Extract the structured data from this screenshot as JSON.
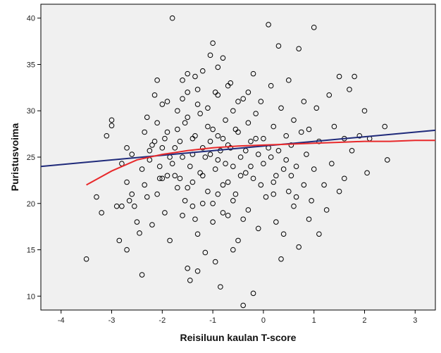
{
  "chart_data": {
    "type": "scatter",
    "title": "",
    "xlabel": "Reisiluun kaulan T-score",
    "ylabel": "Puristusvoima",
    "xlim": [
      -4.4,
      3.4
    ],
    "ylim": [
      8.5,
      41.5
    ],
    "xticks": [
      -4,
      -3,
      -2,
      -1,
      0,
      1,
      2,
      3
    ],
    "yticks": [
      10,
      15,
      20,
      25,
      30,
      35,
      40
    ],
    "grid": false,
    "legend": "none",
    "colors": {
      "plot_background": "#f0f0f0",
      "marker_stroke": "#000000",
      "linear_fit": "#1f2a7a",
      "loess_fit": "#e8292b"
    },
    "fit_lines": [
      {
        "kind": "linear",
        "color": "#1f2a7a",
        "points": [
          [
            -4.4,
            24.0
          ],
          [
            3.4,
            27.9
          ]
        ]
      },
      {
        "kind": "loess",
        "color": "#e8292b",
        "points": [
          [
            -3.5,
            22.0
          ],
          [
            -3.0,
            23.5
          ],
          [
            -2.5,
            24.7
          ],
          [
            -2.0,
            25.3
          ],
          [
            -1.5,
            25.7
          ],
          [
            -1.0,
            26.0
          ],
          [
            -0.5,
            26.2
          ],
          [
            0.0,
            26.3
          ],
          [
            0.5,
            26.4
          ],
          [
            1.0,
            26.5
          ],
          [
            1.5,
            26.6
          ],
          [
            2.0,
            26.7
          ],
          [
            2.5,
            26.7
          ],
          [
            3.0,
            26.8
          ],
          [
            3.4,
            26.8
          ]
        ]
      }
    ],
    "points": [
      [
        -3.5,
        14.0
      ],
      [
        -3.3,
        20.7
      ],
      [
        -3.2,
        19.0
      ],
      [
        -3.1,
        27.3
      ],
      [
        -3.0,
        29.0
      ],
      [
        -3.0,
        28.4
      ],
      [
        -2.9,
        19.7
      ],
      [
        -2.85,
        16.0
      ],
      [
        -2.8,
        24.3
      ],
      [
        -2.8,
        19.7
      ],
      [
        -2.7,
        26.0
      ],
      [
        -2.7,
        15.0
      ],
      [
        -2.65,
        20.3
      ],
      [
        -2.6,
        25.3
      ],
      [
        -2.55,
        19.7
      ],
      [
        -2.5,
        18.0
      ],
      [
        -2.45,
        16.8
      ],
      [
        -2.4,
        12.3
      ],
      [
        -2.4,
        23.7
      ],
      [
        -2.35,
        22.0
      ],
      [
        -2.3,
        29.3
      ],
      [
        -2.3,
        20.7
      ],
      [
        -2.25,
        25.7
      ],
      [
        -2.2,
        26.3
      ],
      [
        -2.15,
        31.7
      ],
      [
        -2.1,
        33.3
      ],
      [
        -2.1,
        28.7
      ],
      [
        -2.05,
        24.0
      ],
      [
        -2.0,
        26.0
      ],
      [
        -2.0,
        30.7
      ],
      [
        -2.0,
        22.7
      ],
      [
        -1.95,
        19.0
      ],
      [
        -1.9,
        31.0
      ],
      [
        -1.9,
        27.7
      ],
      [
        -1.85,
        16.0
      ],
      [
        -1.8,
        40.0
      ],
      [
        -1.8,
        24.3
      ],
      [
        -1.75,
        23.0
      ],
      [
        -1.7,
        28.0
      ],
      [
        -1.7,
        21.7
      ],
      [
        -1.65,
        26.7
      ],
      [
        -1.6,
        33.3
      ],
      [
        -1.6,
        25.0
      ],
      [
        -1.55,
        20.3
      ],
      [
        -1.5,
        34.0
      ],
      [
        -1.5,
        29.3
      ],
      [
        -1.45,
        24.0
      ],
      [
        -1.4,
        22.3
      ],
      [
        -1.4,
        27.0
      ],
      [
        -1.35,
        18.3
      ],
      [
        -1.3,
        30.7
      ],
      [
        -1.3,
        16.7
      ],
      [
        -1.25,
        23.3
      ],
      [
        -1.2,
        26.0
      ],
      [
        -1.2,
        34.3
      ],
      [
        -1.15,
        14.7
      ],
      [
        -1.1,
        21.3
      ],
      [
        -1.1,
        28.3
      ],
      [
        -1.05,
        25.3
      ],
      [
        -1.0,
        37.3
      ],
      [
        -1.0,
        20.0
      ],
      [
        -0.95,
        32.0
      ],
      [
        -0.9,
        24.7
      ],
      [
        -0.9,
        27.3
      ],
      [
        -0.85,
        11.0
      ],
      [
        -0.8,
        35.7
      ],
      [
        -0.8,
        22.0
      ],
      [
        -0.75,
        29.0
      ],
      [
        -0.7,
        26.3
      ],
      [
        -0.7,
        18.7
      ],
      [
        -0.65,
        33.0
      ],
      [
        -0.6,
        24.0
      ],
      [
        -0.6,
        30.0
      ],
      [
        -0.55,
        21.0
      ],
      [
        -0.5,
        27.7
      ],
      [
        -0.5,
        16.0
      ],
      [
        -0.45,
        25.0
      ],
      [
        -0.4,
        31.3
      ],
      [
        -0.4,
        9.0
      ],
      [
        -0.35,
        23.3
      ],
      [
        -0.3,
        28.7
      ],
      [
        -0.3,
        19.3
      ],
      [
        -0.25,
        26.7
      ],
      [
        -0.2,
        34.0
      ],
      [
        -0.2,
        22.7
      ],
      [
        -0.15,
        29.7
      ],
      [
        -0.1,
        25.3
      ],
      [
        -0.1,
        17.3
      ],
      [
        -0.05,
        31.0
      ],
      [
        0.0,
        24.3
      ],
      [
        0.0,
        27.0
      ],
      [
        0.05,
        20.7
      ],
      [
        0.1,
        39.3
      ],
      [
        0.1,
        26.0
      ],
      [
        0.15,
        32.7
      ],
      [
        0.2,
        22.3
      ],
      [
        0.2,
        28.3
      ],
      [
        0.25,
        18.0
      ],
      [
        0.3,
        37.0
      ],
      [
        0.3,
        25.7
      ],
      [
        0.35,
        30.3
      ],
      [
        0.4,
        23.7
      ],
      [
        0.4,
        16.7
      ],
      [
        0.45,
        27.3
      ],
      [
        0.5,
        21.3
      ],
      [
        0.5,
        33.3
      ],
      [
        0.55,
        26.3
      ],
      [
        0.6,
        19.7
      ],
      [
        0.6,
        29.0
      ],
      [
        0.65,
        24.0
      ],
      [
        0.7,
        36.7
      ],
      [
        0.7,
        15.3
      ],
      [
        0.75,
        27.7
      ],
      [
        0.8,
        22.0
      ],
      [
        0.8,
        31.0
      ],
      [
        0.85,
        25.3
      ],
      [
        0.9,
        28.0
      ],
      [
        0.95,
        20.3
      ],
      [
        1.0,
        23.7
      ],
      [
        1.0,
        39.0
      ],
      [
        1.05,
        30.3
      ],
      [
        1.1,
        16.7
      ],
      [
        1.1,
        26.7
      ],
      [
        1.2,
        22.0
      ],
      [
        1.3,
        31.7
      ],
      [
        1.35,
        24.3
      ],
      [
        1.4,
        28.3
      ],
      [
        1.5,
        33.7
      ],
      [
        1.5,
        21.3
      ],
      [
        1.6,
        27.0
      ],
      [
        1.7,
        32.3
      ],
      [
        1.75,
        25.7
      ],
      [
        1.8,
        33.7
      ],
      [
        1.9,
        27.3
      ],
      [
        2.0,
        30.0
      ],
      [
        2.05,
        23.3
      ],
      [
        2.1,
        27.0
      ],
      [
        2.4,
        28.3
      ],
      [
        2.45,
        24.7
      ],
      [
        -1.5,
        13.0
      ],
      [
        -1.45,
        11.7
      ],
      [
        -1.3,
        12.7
      ],
      [
        -0.95,
        13.7
      ],
      [
        -0.6,
        15.0
      ],
      [
        -0.2,
        10.3
      ],
      [
        0.35,
        14.0
      ],
      [
        -2.7,
        22.3
      ],
      [
        -2.6,
        21.0
      ],
      [
        -2.2,
        17.7
      ],
      [
        -2.1,
        21.0
      ],
      [
        -1.9,
        23.0
      ],
      [
        -1.85,
        25.0
      ],
      [
        -1.75,
        26.0
      ],
      [
        -1.65,
        22.7
      ],
      [
        -1.55,
        28.7
      ],
      [
        -1.5,
        21.7
      ],
      [
        -1.4,
        25.3
      ],
      [
        -1.35,
        27.3
      ],
      [
        -1.25,
        29.7
      ],
      [
        -1.2,
        23.0
      ],
      [
        -1.15,
        25.0
      ],
      [
        -1.05,
        26.7
      ],
      [
        -1.0,
        28.0
      ],
      [
        -0.95,
        23.7
      ],
      [
        -0.9,
        21.0
      ],
      [
        -0.85,
        25.7
      ],
      [
        -0.8,
        27.0
      ],
      [
        -0.75,
        24.3
      ],
      [
        -0.7,
        22.3
      ],
      [
        -0.65,
        26.0
      ],
      [
        -0.55,
        28.0
      ],
      [
        -0.45,
        23.0
      ],
      [
        -0.35,
        25.7
      ],
      [
        -0.25,
        24.0
      ],
      [
        -0.15,
        27.0
      ],
      [
        -0.05,
        22.0
      ],
      [
        0.15,
        25.0
      ],
      [
        0.25,
        23.0
      ],
      [
        0.45,
        24.7
      ],
      [
        0.55,
        23.0
      ],
      [
        -1.7,
        30.0
      ],
      [
        -1.6,
        31.3
      ],
      [
        -1.5,
        32.0
      ],
      [
        -1.3,
        32.3
      ],
      [
        -1.1,
        30.3
      ],
      [
        -0.9,
        31.7
      ],
      [
        -0.7,
        32.7
      ],
      [
        -0.5,
        31.0
      ],
      [
        -0.3,
        32.0
      ],
      [
        -1.6,
        18.7
      ],
      [
        -1.4,
        19.7
      ],
      [
        -1.2,
        20.0
      ],
      [
        -1.0,
        18.0
      ],
      [
        -0.8,
        19.0
      ],
      [
        -0.6,
        20.3
      ],
      [
        -0.4,
        18.3
      ],
      [
        -2.35,
        27.7
      ],
      [
        -2.25,
        24.7
      ],
      [
        -2.15,
        26.7
      ],
      [
        -2.05,
        22.7
      ],
      [
        -1.95,
        27.0
      ],
      [
        -1.05,
        36.0
      ],
      [
        -0.9,
        34.7
      ],
      [
        -1.35,
        33.7
      ],
      [
        0.2,
        21.0
      ],
      [
        0.65,
        20.7
      ],
      [
        0.9,
        18.3
      ],
      [
        1.25,
        19.3
      ],
      [
        1.6,
        22.7
      ]
    ]
  }
}
